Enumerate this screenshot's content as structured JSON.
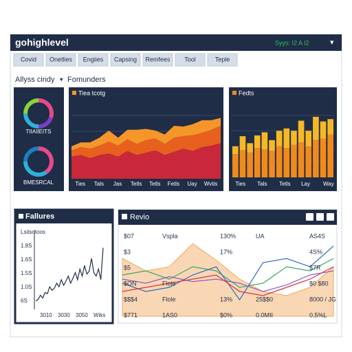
{
  "header": {
    "title": "gohighlevel",
    "status": "Syys: I2 A I2",
    "menu": "▾"
  },
  "tabs": [
    "Covid",
    "Onetlies",
    "Engiies",
    "Capsing",
    "Remfees",
    "Tool",
    "Teple"
  ],
  "toolbar": {
    "label": "Allyss cindy",
    "caret": "▾",
    "filter": "Fomunders"
  },
  "chart_data": [
    {
      "type": "pie",
      "title": "TIIAIIEITS",
      "values": [
        30,
        20,
        25,
        25
      ],
      "colors": [
        "#e64a8b",
        "#7b3fc4",
        "#2fb0d8",
        "#8bd43a"
      ]
    },
    {
      "type": "pie",
      "title": "BMESRCAL",
      "values": [
        40,
        35,
        25
      ],
      "colors": [
        "#e64a8b",
        "#2fb0d8",
        "#1a7fc0"
      ]
    },
    {
      "type": "area",
      "title": "Tiea tcotg",
      "x": [
        0,
        1,
        2,
        3,
        4,
        5,
        6,
        7,
        8,
        9,
        10,
        11,
        12,
        13,
        14,
        15,
        16
      ],
      "xlim": [
        0,
        16
      ],
      "xticks": [
        {
          "value": 0.5,
          "label": "Ties"
        },
        {
          "value": 2.5,
          "label": "Tals"
        },
        {
          "value": 4.5,
          "label": "Jas"
        },
        {
          "value": 6.5,
          "label": "Tetls"
        },
        {
          "value": 8.5,
          "label": "Tetls"
        },
        {
          "value": 10.5,
          "label": "Fetls"
        },
        {
          "value": 12.5,
          "label": "Uay"
        },
        {
          "value": 14.5,
          "label": "Wvtis"
        }
      ],
      "ylim": [
        0,
        100
      ],
      "grid": true,
      "series": [
        {
          "color": "#c8283a",
          "values": [
            28,
            30,
            26,
            30,
            32,
            28,
            35,
            30,
            33,
            36,
            30,
            34,
            38,
            35,
            40,
            42,
            45
          ]
        },
        {
          "color": "#e8601e",
          "values": [
            8,
            10,
            12,
            12,
            15,
            14,
            15,
            14,
            16,
            15,
            14,
            18,
            16,
            20,
            18,
            20,
            22
          ]
        },
        {
          "color": "#f5962a",
          "values": [
            5,
            6,
            8,
            10,
            14,
            10,
            12,
            18,
            14,
            10,
            12,
            15,
            12,
            14,
            16,
            12,
            10
          ]
        }
      ]
    },
    {
      "type": "bar",
      "title": "Fedts",
      "categories": [
        "Ties",
        null,
        null,
        "Tals",
        null,
        null,
        "Tetls",
        null,
        null,
        "Lay",
        null,
        null,
        "Way",
        null
      ],
      "ylim": [
        0,
        100
      ],
      "grid": true,
      "series": [
        {
          "color": "#f08a1c",
          "values": [
            30,
            35,
            32,
            38,
            36,
            34,
            40,
            38,
            42,
            45,
            40,
            48,
            50,
            55
          ]
        },
        {
          "color": "#f7b826",
          "values": [
            10,
            18,
            12,
            16,
            22,
            14,
            20,
            25,
            18,
            28,
            20,
            30,
            22,
            20
          ]
        }
      ]
    },
    {
      "type": "line",
      "title": "Fallures",
      "axis_labels": [
        "Lsitsotoos",
        "1.8S",
        "1.6S",
        "1.5S",
        "1.0S",
        "6S"
      ],
      "x_labels": [
        "3010",
        "3030",
        "3050",
        "Wiks"
      ],
      "x": [
        0,
        1,
        2,
        3,
        4,
        5,
        6,
        7,
        8,
        9,
        10,
        11,
        12,
        13,
        14,
        15,
        16,
        17,
        18,
        19,
        20,
        21,
        22,
        23,
        24,
        25,
        26,
        27,
        28,
        29
      ],
      "xlim": [
        0,
        29
      ],
      "ylim": [
        0,
        100
      ],
      "series": [
        {
          "color": "#1f2d47",
          "values": [
            10,
            12,
            18,
            14,
            22,
            20,
            30,
            25,
            28,
            35,
            30,
            40,
            32,
            38,
            45,
            35,
            42,
            50,
            40,
            55,
            45,
            60,
            48,
            52,
            70,
            50,
            45,
            55,
            40,
            85
          ]
        }
      ]
    },
    {
      "type": "line",
      "title": "Revio",
      "x": [
        0,
        1,
        2,
        3,
        4,
        5,
        6,
        7,
        8,
        9
      ],
      "xlim": [
        0,
        9
      ],
      "ylim": [
        0,
        100
      ],
      "series": [
        {
          "color": "#f2a65a",
          "fill": true,
          "values": [
            70,
            55,
            60,
            88,
            68,
            45,
            30,
            25,
            35,
            60
          ]
        },
        {
          "color": "#3aa860",
          "values": [
            50,
            55,
            45,
            60,
            55,
            35,
            40,
            60,
            55,
            70
          ]
        },
        {
          "color": "#2a6fc0",
          "values": [
            40,
            30,
            35,
            50,
            60,
            20,
            65,
            70,
            60,
            85
          ]
        },
        {
          "color": "#8a5cc8",
          "values": [
            45,
            40,
            48,
            42,
            45,
            40,
            30,
            38,
            50,
            55
          ]
        },
        {
          "color": "#d8343a",
          "values": [
            30,
            35,
            40,
            45,
            50,
            30,
            25,
            35,
            45,
            60
          ]
        }
      ],
      "table": [
        [
          "$07",
          "Vspla",
          "130%",
          "UA",
          "AS4S"
        ],
        [
          "$3",
          "",
          "17%",
          "",
          "4S%"
        ],
        [
          "$5",
          "",
          "",
          "",
          "$7R"
        ],
        [
          "$ON",
          "Flole",
          "",
          "",
          "$0 $80"
        ],
        [
          "$$$4",
          "Flole",
          "13%",
          "25$$0",
          "8000 / JG"
        ],
        [
          "$771",
          "1AS0",
          "$0%",
          "0.0MII",
          "0.5%L"
        ]
      ]
    }
  ]
}
